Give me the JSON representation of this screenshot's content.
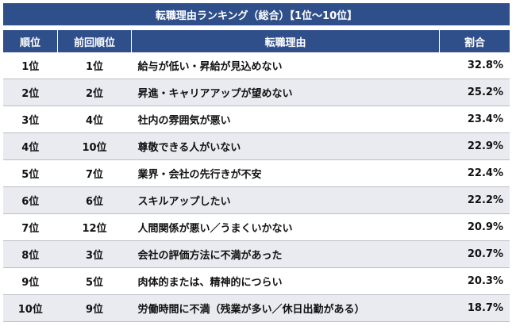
{
  "title": "転職理由ランキング（総合）【1位〜10位】",
  "headers": {
    "rank": "順位",
    "previous": "前回順位",
    "reason": "転職理由",
    "ratio": "割合"
  },
  "rows": [
    {
      "rank": "1位",
      "previous": "1位",
      "reason": "給与が低い・昇給が見込めない",
      "ratio": "32.8%"
    },
    {
      "rank": "2位",
      "previous": "2位",
      "reason": "昇進・キャリアアップが望めない",
      "ratio": "25.2%"
    },
    {
      "rank": "3位",
      "previous": "4位",
      "reason": "社内の雰囲気が悪い",
      "ratio": "23.4%"
    },
    {
      "rank": "4位",
      "previous": "10位",
      "reason": "尊敬できる人がいない",
      "ratio": "22.9%"
    },
    {
      "rank": "5位",
      "previous": "7位",
      "reason": "業界・会社の先行きが不安",
      "ratio": "22.4%"
    },
    {
      "rank": "6位",
      "previous": "6位",
      "reason": "スキルアップしたい",
      "ratio": "22.2%"
    },
    {
      "rank": "7位",
      "previous": "12位",
      "reason": "人間関係が悪い／うまくいかない",
      "ratio": "20.9%"
    },
    {
      "rank": "8位",
      "previous": "3位",
      "reason": "会社の評価方法に不満があった",
      "ratio": "20.7%"
    },
    {
      "rank": "9位",
      "previous": "5位",
      "reason": "肉体的または、精神的につらい",
      "ratio": "20.3%"
    },
    {
      "rank": "10位",
      "previous": "9位",
      "reason": "労働時間に不満（残業が多い／休日出勤がある）",
      "ratio": "18.7%"
    }
  ]
}
